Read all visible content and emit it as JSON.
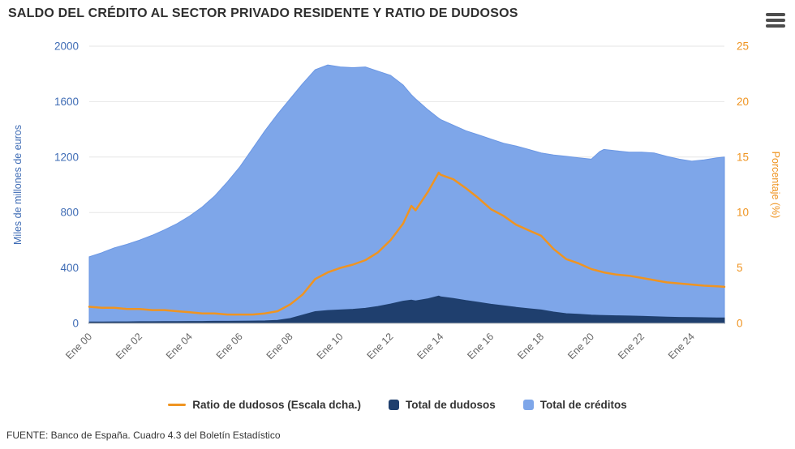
{
  "title": "SALDO DEL CRÉDITO AL SECTOR PRIVADO RESIDENTE Y RATIO DE DUDOSOS",
  "source": "FUENTE: Banco de España. Cuadro 4.3 del Boletín Estadístico",
  "menu_icon": "hamburger-export-menu",
  "colors": {
    "grid": "#e6e6e6",
    "baseline": "#c9c9c9",
    "x_label": "#666666",
    "title": "#2f2f2f",
    "credit_area": "#7ea6e9",
    "credit_edge": "#6b97e4",
    "npl_area": "#1f3f6e",
    "ratio_line": "#ef9421",
    "left_axis_text": "#3f6cb5",
    "right_axis_text": "#ef9421"
  },
  "legend": {
    "items": [
      {
        "label": "Ratio de dudosos (Escala dcha.)",
        "marker": "line",
        "color": "#ef9421"
      },
      {
        "label": "Total de dudosos",
        "marker": "square",
        "color": "#1f3f6e"
      },
      {
        "label": "Total de créditos",
        "marker": "square",
        "color": "#7ea6e9"
      }
    ]
  },
  "chart_data": {
    "type": "area",
    "subtype": "two stacked-looking areas (left axis) + one line (right axis)",
    "xlim": [
      2000,
      2025.3
    ],
    "x_ticks": [
      {
        "v": 2000,
        "label": "Ene 00"
      },
      {
        "v": 2002,
        "label": "Ene 02"
      },
      {
        "v": 2004,
        "label": "Ene 04"
      },
      {
        "v": 2006,
        "label": "Ene 06"
      },
      {
        "v": 2008,
        "label": "Ene 08"
      },
      {
        "v": 2010,
        "label": "Ene 10"
      },
      {
        "v": 2012,
        "label": "Ene 12"
      },
      {
        "v": 2014,
        "label": "Ene 14"
      },
      {
        "v": 2016,
        "label": "Ene 16"
      },
      {
        "v": 2018,
        "label": "Ene 18"
      },
      {
        "v": 2020,
        "label": "Ene 20"
      },
      {
        "v": 2022,
        "label": "Ene 22"
      },
      {
        "v": 2024,
        "label": "Ene 24"
      }
    ],
    "left_axis": {
      "title": "Miles de millones de euros",
      "range": [
        0,
        2000
      ],
      "ticks": [
        0,
        400,
        800,
        1200,
        1600,
        2000
      ],
      "color": "#3f6cb5"
    },
    "right_axis": {
      "title": "Porcentaje (%)",
      "range": [
        0,
        25
      ],
      "ticks": [
        0,
        5,
        10,
        15,
        20,
        25
      ],
      "color": "#ef9421"
    },
    "grid": "horizontal only",
    "legend_position": "bottom center",
    "x": [
      2000,
      2000.5,
      2001,
      2001.5,
      2002,
      2002.5,
      2003,
      2003.5,
      2004,
      2004.5,
      2005,
      2005.5,
      2006,
      2006.5,
      2007,
      2007.5,
      2008,
      2008.5,
      2009,
      2009.5,
      2010,
      2010.5,
      2011,
      2011.5,
      2012,
      2012.5,
      2012.83,
      2013,
      2013.5,
      2013.92,
      2014,
      2014.5,
      2015,
      2015.5,
      2016,
      2016.5,
      2017,
      2017.5,
      2018,
      2018.5,
      2019,
      2019.5,
      2020,
      2020.33,
      2020.5,
      2021,
      2021.5,
      2022,
      2022.5,
      2023,
      2023.5,
      2024,
      2024.5,
      2025,
      2025.3
    ],
    "series": [
      {
        "id": "total-creditos",
        "name": "Total de créditos",
        "type": "area",
        "axis": "left",
        "color": "#7ea6e9",
        "edge": "#6b97e4",
        "values": [
          480,
          510,
          545,
          570,
          600,
          635,
          675,
          720,
          775,
          840,
          920,
          1020,
          1130,
          1260,
          1390,
          1510,
          1620,
          1730,
          1830,
          1865,
          1850,
          1845,
          1850,
          1820,
          1790,
          1720,
          1650,
          1620,
          1540,
          1480,
          1470,
          1430,
          1390,
          1360,
          1330,
          1300,
          1280,
          1255,
          1230,
          1215,
          1205,
          1195,
          1185,
          1240,
          1255,
          1245,
          1235,
          1235,
          1230,
          1205,
          1185,
          1170,
          1180,
          1195,
          1200
        ]
      },
      {
        "id": "total-dudosos",
        "name": "Total de dudosos",
        "type": "area",
        "axis": "left",
        "color": "#1f3f6e",
        "edge": "#1f3f6e",
        "values": [
          10,
          10,
          11,
          11,
          12,
          12,
          13,
          13,
          14,
          14,
          15,
          15,
          16,
          17,
          18,
          22,
          35,
          60,
          85,
          93,
          97,
          102,
          109,
          122,
          140,
          160,
          168,
          162,
          178,
          197,
          192,
          180,
          165,
          152,
          138,
          127,
          116,
          106,
          97,
          82,
          70,
          66,
          60,
          58,
          57,
          55,
          53,
          51,
          48,
          45,
          43,
          42,
          41,
          40,
          40
        ]
      },
      {
        "id": "ratio-dudosos",
        "name": "Ratio de dudosos (Escala dcha.)",
        "type": "line",
        "axis": "right",
        "color": "#ef9421",
        "values": [
          1.5,
          1.4,
          1.4,
          1.3,
          1.3,
          1.2,
          1.2,
          1.1,
          1.0,
          0.9,
          0.9,
          0.8,
          0.8,
          0.8,
          0.9,
          1.1,
          1.7,
          2.6,
          4.0,
          4.6,
          5.0,
          5.3,
          5.7,
          6.4,
          7.5,
          9.0,
          10.6,
          10.2,
          11.9,
          13.6,
          13.4,
          13.0,
          12.2,
          11.3,
          10.3,
          9.7,
          8.9,
          8.4,
          7.9,
          6.7,
          5.8,
          5.4,
          4.9,
          4.7,
          4.6,
          4.4,
          4.3,
          4.1,
          3.9,
          3.7,
          3.6,
          3.5,
          3.4,
          3.35,
          3.3
        ]
      }
    ]
  }
}
